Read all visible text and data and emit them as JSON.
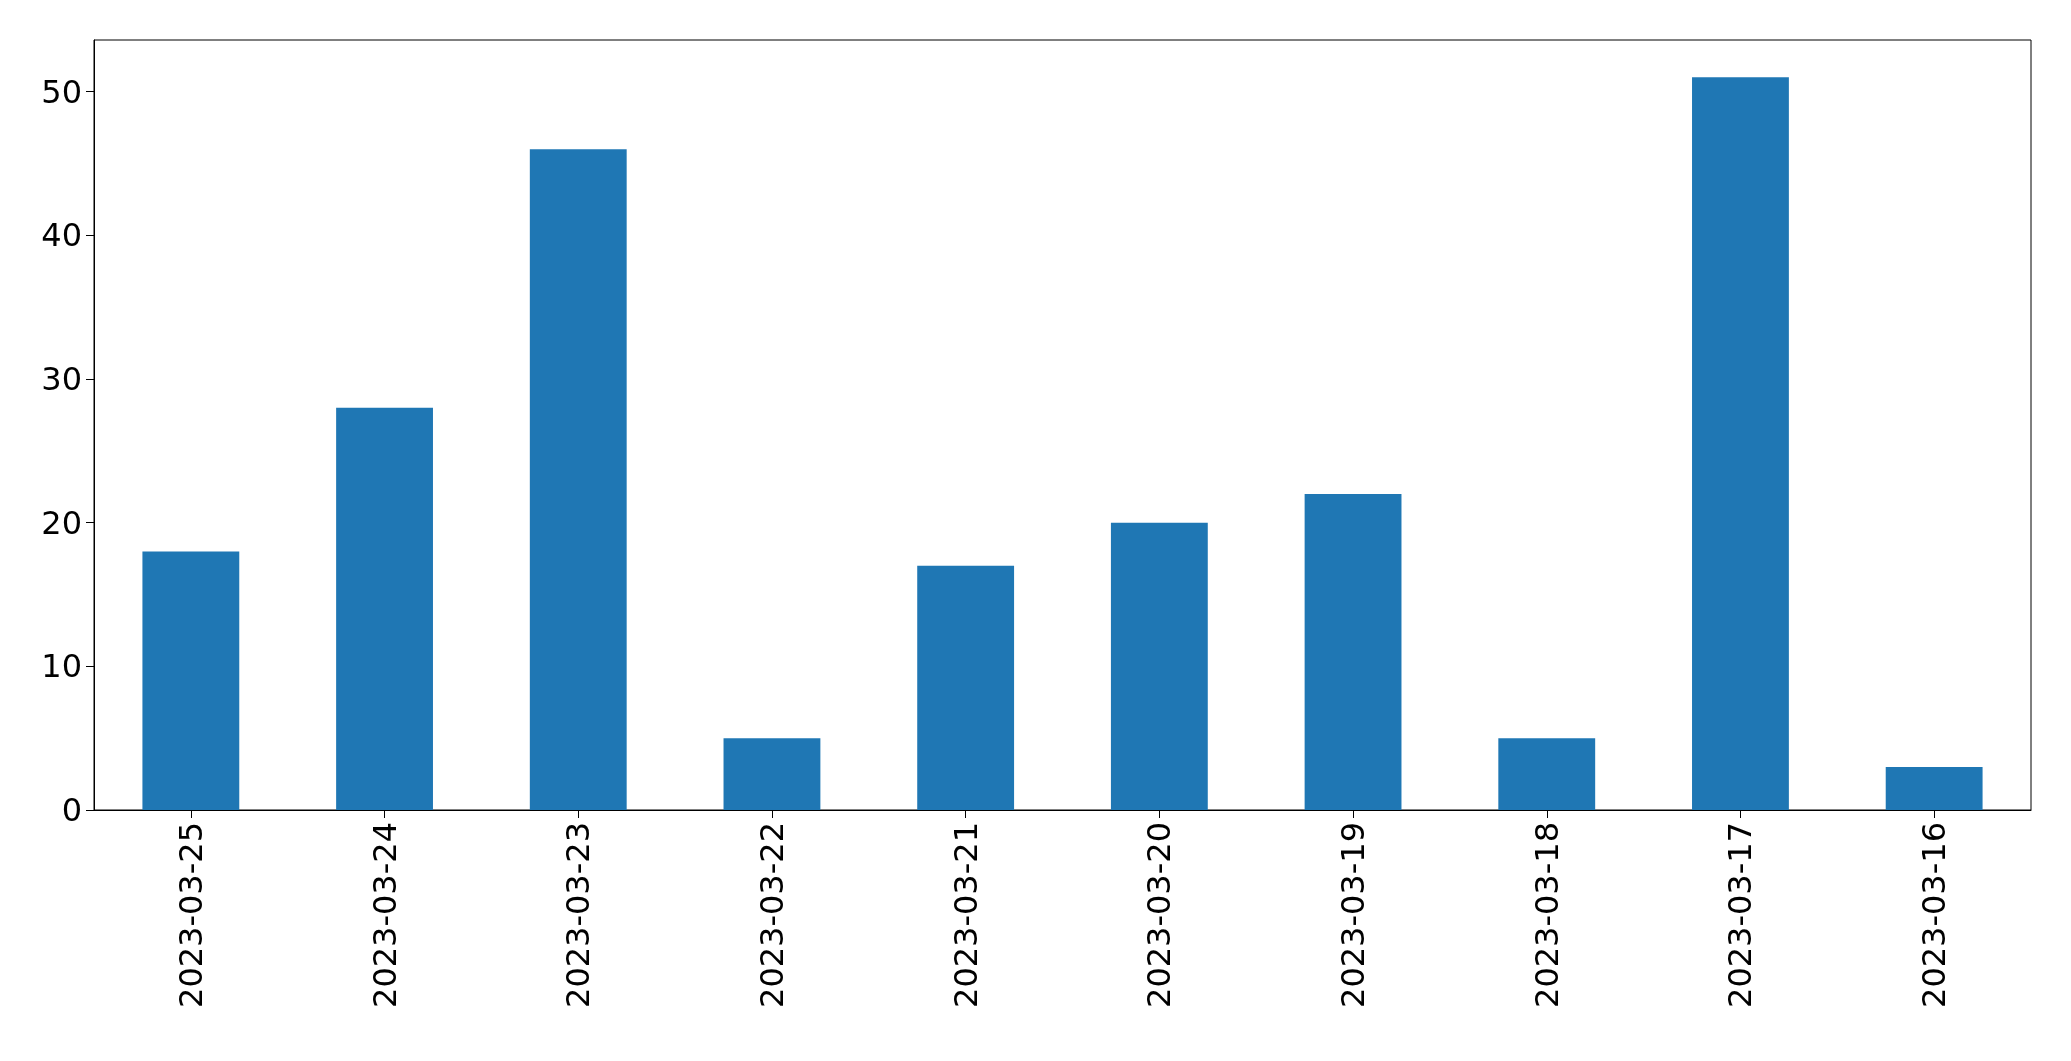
{
  "chart_data": {
    "type": "bar",
    "categories": [
      "2023-03-25",
      "2023-03-24",
      "2023-03-23",
      "2023-03-22",
      "2023-03-21",
      "2023-03-20",
      "2023-03-19",
      "2023-03-18",
      "2023-03-17",
      "2023-03-16"
    ],
    "values": [
      18,
      28,
      46,
      5,
      17,
      20,
      22,
      5,
      51,
      3
    ],
    "color": "#1f77b4",
    "ylim": [
      0,
      53.6
    ],
    "yticks": [
      0,
      10,
      20,
      30,
      40,
      50
    ],
    "grid": false
  }
}
